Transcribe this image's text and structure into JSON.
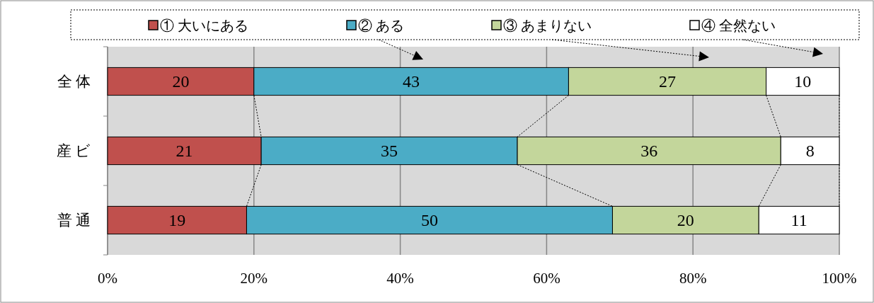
{
  "chart_data": {
    "type": "bar",
    "orientation": "horizontal",
    "stacked": true,
    "categories": [
      "全 体",
      "産 ビ",
      "普 通"
    ],
    "series": [
      {
        "name": "① 大いにある",
        "color": "#c0504d",
        "values": [
          20,
          21,
          19
        ]
      },
      {
        "name": "② ある",
        "color": "#4bacc6",
        "values": [
          43,
          35,
          50
        ]
      },
      {
        "name": "③ あまりない",
        "color": "#c3d69b",
        "values": [
          27,
          36,
          20
        ]
      },
      {
        "name": "④ 全然ない",
        "color": "#ffffff",
        "values": [
          10,
          8,
          11
        ]
      }
    ],
    "xlim": [
      0,
      100
    ],
    "xticks": [
      {
        "value": 0,
        "label": "0%"
      },
      {
        "value": 20,
        "label": "20%"
      },
      {
        "value": 40,
        "label": "40%"
      },
      {
        "value": 60,
        "label": "60%"
      },
      {
        "value": 80,
        "label": "80%"
      },
      {
        "value": 100,
        "label": "100%"
      }
    ],
    "grid": "x",
    "legend": "top",
    "data_labels": true
  }
}
